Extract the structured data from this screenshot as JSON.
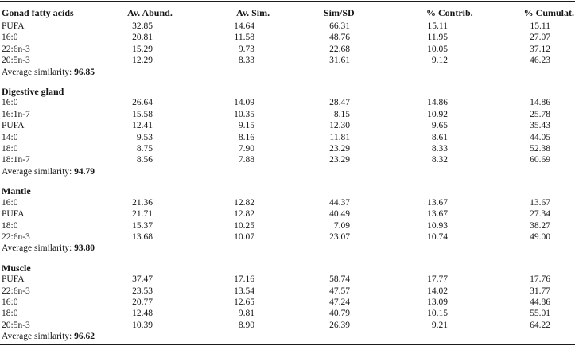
{
  "table": {
    "columns": [
      "Gonad fatty acids",
      "Av. Abund.",
      "Av. Sim.",
      "Sim/SD",
      "% Contrib.",
      "% Cumulat."
    ],
    "average_label": "Average similarity:",
    "sections": [
      {
        "title": "",
        "average_similarity": "96.85",
        "rows": [
          [
            "PUFA",
            "32.85",
            "14.64",
            "66.31",
            "15.11",
            "15.11"
          ],
          [
            "16:0",
            "20.81",
            "11.58",
            "48.76",
            "11.95",
            "27.07"
          ],
          [
            "22:6n-3",
            "15.29",
            "9.73",
            "22.68",
            "10.05",
            "37.12"
          ],
          [
            "20:5n-3",
            "12.29",
            "8.33",
            "31.61",
            "9.12",
            "46.23"
          ]
        ]
      },
      {
        "title": "Digestive gland",
        "average_similarity": "94.79",
        "rows": [
          [
            "16:0",
            "26.64",
            "14.09",
            "28.47",
            "14.86",
            "14.86"
          ],
          [
            "16:1n-7",
            "15.58",
            "10.35",
            "8.15",
            "10.92",
            "25.78"
          ],
          [
            "PUFA",
            "12.41",
            "9.15",
            "12.30",
            "9.65",
            "35.43"
          ],
          [
            "14:0",
            "9.53",
            "8.16",
            "11.81",
            "8.61",
            "44.05"
          ],
          [
            "18:0",
            "8.75",
            "7.90",
            "23.29",
            "8.33",
            "52.38"
          ],
          [
            "18:1n-7",
            "8.56",
            "7.88",
            "23.29",
            "8.32",
            "60.69"
          ]
        ]
      },
      {
        "title": "Mantle",
        "average_similarity": "93.80",
        "rows": [
          [
            "16:0",
            "21.36",
            "12.82",
            "44.37",
            "13.67",
            "13.67"
          ],
          [
            "PUFA",
            "21.71",
            "12.82",
            "40.49",
            "13.67",
            "27.34"
          ],
          [
            "18:0",
            "15.37",
            "10.25",
            "7.09",
            "10.93",
            "38.27"
          ],
          [
            "22:6n-3",
            "13.68",
            "10.07",
            "23.07",
            "10.74",
            "49.00"
          ]
        ]
      },
      {
        "title": "Muscle",
        "average_similarity": "96.62",
        "rows": [
          [
            "PUFA",
            "37.47",
            "17.16",
            "58.74",
            "17.77",
            "17.76"
          ],
          [
            "22:6n-3",
            "23.53",
            "13.54",
            "47.57",
            "14.02",
            "31.77"
          ],
          [
            "16:0",
            "20.77",
            "12.65",
            "47.24",
            "13.09",
            "44.86"
          ],
          [
            "18:0",
            "12.48",
            "9.81",
            "40.79",
            "10.15",
            "55.01"
          ],
          [
            "20:5n-3",
            "10.39",
            "8.90",
            "26.39",
            "9.21",
            "64.22"
          ]
        ]
      }
    ]
  }
}
